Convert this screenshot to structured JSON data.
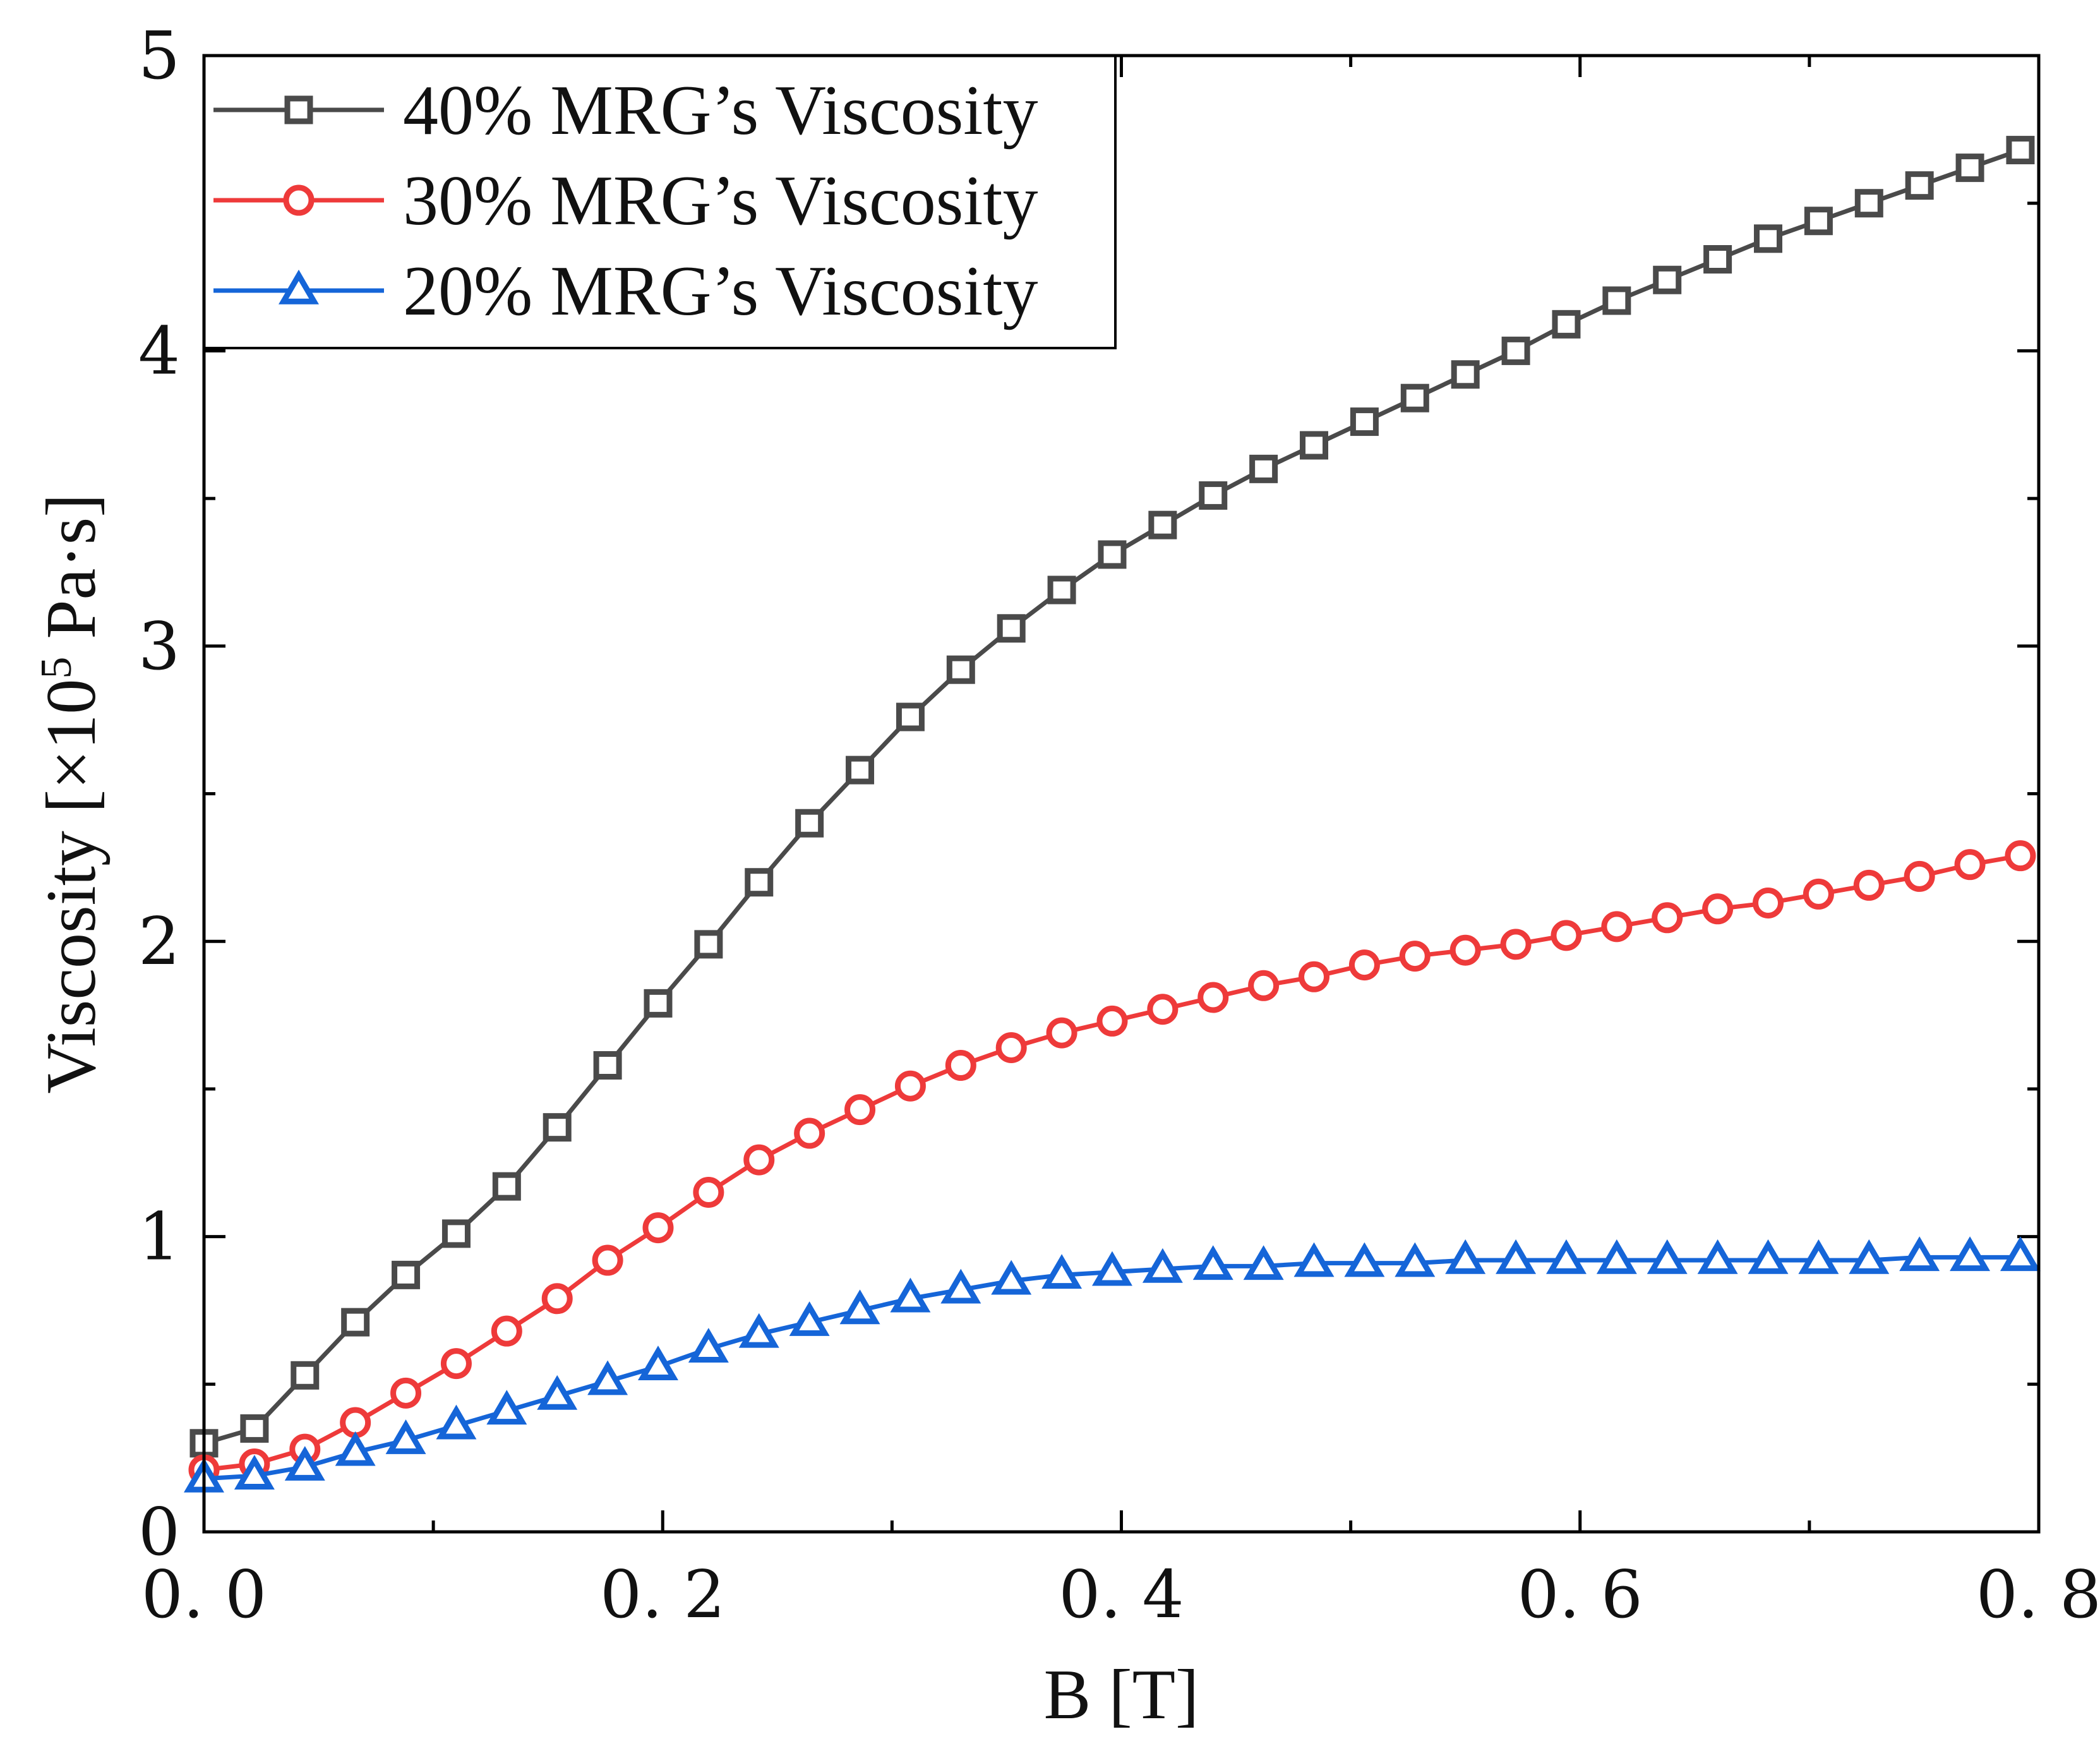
{
  "chart_data": {
    "type": "line",
    "title": "",
    "xlabel": "B [T]",
    "ylabel_main": "Viscosity [×10",
    "ylabel_sup": "5",
    "ylabel_tail": " Pa·s]",
    "xlim": [
      0.0,
      0.8
    ],
    "ylim": [
      0,
      5
    ],
    "x_ticks": [
      0.0,
      0.2,
      0.4,
      0.6,
      0.8
    ],
    "x_tick_labels": [
      "0. 0",
      "0. 2",
      "0. 4",
      "0. 6",
      "0. 8"
    ],
    "y_ticks": [
      0,
      1,
      2,
      3,
      4,
      5
    ],
    "y_tick_labels": [
      "0",
      "1",
      "2",
      "3",
      "4",
      "5"
    ],
    "grid": false,
    "legend_position": "top-left",
    "x": [
      0.0,
      0.022,
      0.044,
      0.066,
      0.088,
      0.11,
      0.132,
      0.154,
      0.176,
      0.198,
      0.22,
      0.242,
      0.264,
      0.286,
      0.308,
      0.33,
      0.352,
      0.374,
      0.396,
      0.418,
      0.44,
      0.462,
      0.484,
      0.506,
      0.528,
      0.55,
      0.572,
      0.594,
      0.616,
      0.638,
      0.66,
      0.682,
      0.704,
      0.726,
      0.748,
      0.77,
      0.792
    ],
    "series": [
      {
        "name": "40% MRG’s Viscosity",
        "color": "#4a4a4a",
        "marker": "square",
        "values": [
          0.3,
          0.35,
          0.53,
          0.71,
          0.87,
          1.01,
          1.17,
          1.37,
          1.58,
          1.79,
          1.99,
          2.2,
          2.4,
          2.58,
          2.76,
          2.92,
          3.06,
          3.19,
          3.31,
          3.41,
          3.51,
          3.6,
          3.68,
          3.76,
          3.84,
          3.92,
          4.0,
          4.09,
          4.17,
          4.24,
          4.31,
          4.38,
          4.44,
          4.5,
          4.56,
          4.62,
          4.68
        ]
      },
      {
        "name": "30% MRG’s Viscosity",
        "color": "#ee3a3a",
        "marker": "circle",
        "values": [
          0.21,
          0.23,
          0.28,
          0.37,
          0.47,
          0.57,
          0.68,
          0.79,
          0.92,
          1.03,
          1.15,
          1.26,
          1.35,
          1.43,
          1.51,
          1.58,
          1.64,
          1.69,
          1.73,
          1.77,
          1.81,
          1.85,
          1.88,
          1.92,
          1.95,
          1.97,
          1.99,
          2.02,
          2.05,
          2.08,
          2.11,
          2.13,
          2.16,
          2.19,
          2.22,
          2.26,
          2.29
        ]
      },
      {
        "name": "20% MRG’s Viscosity",
        "color": "#1565d8",
        "marker": "triangle",
        "values": [
          0.18,
          0.19,
          0.22,
          0.27,
          0.31,
          0.36,
          0.41,
          0.46,
          0.51,
          0.56,
          0.62,
          0.67,
          0.71,
          0.75,
          0.79,
          0.82,
          0.85,
          0.87,
          0.88,
          0.89,
          0.9,
          0.9,
          0.91,
          0.91,
          0.91,
          0.92,
          0.92,
          0.92,
          0.92,
          0.92,
          0.92,
          0.92,
          0.92,
          0.92,
          0.93,
          0.93,
          0.93
        ]
      }
    ]
  }
}
